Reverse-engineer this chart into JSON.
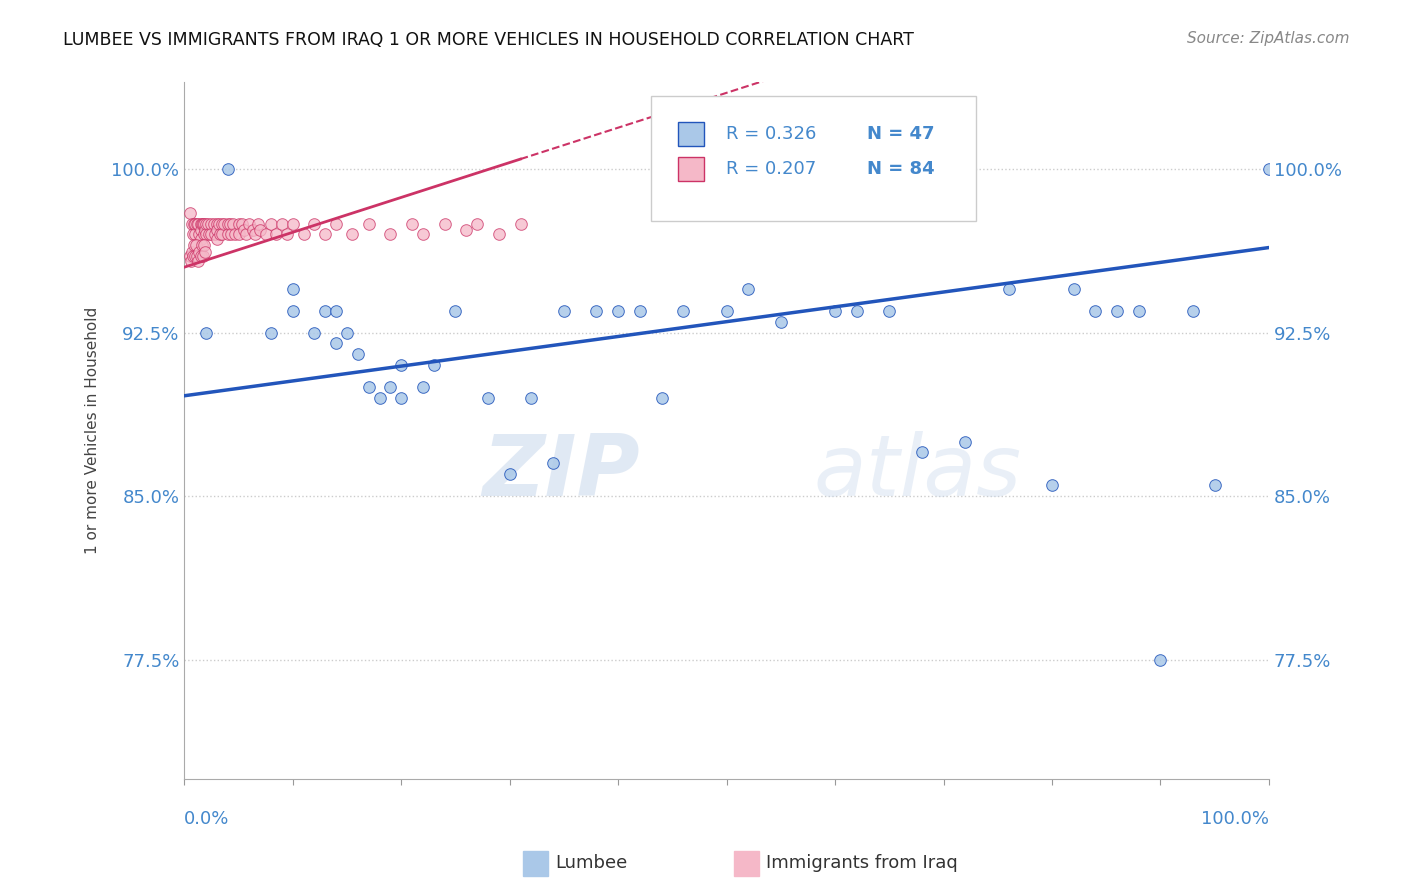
{
  "title": "LUMBEE VS IMMIGRANTS FROM IRAQ 1 OR MORE VEHICLES IN HOUSEHOLD CORRELATION CHART",
  "source": "Source: ZipAtlas.com",
  "ylabel": "1 or more Vehicles in Household",
  "ytick_labels": [
    "77.5%",
    "85.0%",
    "92.5%",
    "100.0%"
  ],
  "ytick_values": [
    0.775,
    0.85,
    0.925,
    1.0
  ],
  "xlim": [
    0.0,
    1.0
  ],
  "ylim": [
    0.72,
    1.04
  ],
  "legend_blue_R": "R = 0.326",
  "legend_blue_N": "N = 47",
  "legend_pink_R": "R = 0.207",
  "legend_pink_N": "N = 84",
  "legend_blue_label": "Lumbee",
  "legend_pink_label": "Immigrants from Iraq",
  "watermark": "ZIPatlas",
  "blue_scatter_x": [
    0.02,
    0.04,
    0.08,
    0.1,
    0.1,
    0.12,
    0.13,
    0.14,
    0.14,
    0.15,
    0.16,
    0.17,
    0.18,
    0.19,
    0.2,
    0.2,
    0.22,
    0.23,
    0.25,
    0.28,
    0.3,
    0.32,
    0.34,
    0.35,
    0.38,
    0.4,
    0.42,
    0.44,
    0.46,
    0.5,
    0.52,
    0.55,
    0.6,
    0.62,
    0.65,
    0.68,
    0.72,
    0.76,
    0.8,
    0.82,
    0.84,
    0.86,
    0.88,
    0.9,
    0.93,
    0.95,
    1.0
  ],
  "blue_scatter_y": [
    0.925,
    1.0,
    0.925,
    0.945,
    0.935,
    0.925,
    0.935,
    0.935,
    0.92,
    0.925,
    0.915,
    0.9,
    0.895,
    0.9,
    0.895,
    0.91,
    0.9,
    0.91,
    0.935,
    0.895,
    0.86,
    0.895,
    0.865,
    0.935,
    0.935,
    0.935,
    0.935,
    0.895,
    0.935,
    0.935,
    0.945,
    0.93,
    0.935,
    0.935,
    0.935,
    0.87,
    0.875,
    0.945,
    0.855,
    0.945,
    0.935,
    0.935,
    0.935,
    0.775,
    0.935,
    0.855,
    1.0
  ],
  "pink_scatter_x": [
    0.005,
    0.007,
    0.008,
    0.009,
    0.01,
    0.01,
    0.012,
    0.013,
    0.014,
    0.015,
    0.015,
    0.015,
    0.016,
    0.017,
    0.018,
    0.018,
    0.019,
    0.02,
    0.02,
    0.022,
    0.023,
    0.025,
    0.025,
    0.027,
    0.028,
    0.03,
    0.03,
    0.03,
    0.032,
    0.033,
    0.035,
    0.035,
    0.037,
    0.04,
    0.04,
    0.042,
    0.043,
    0.045,
    0.047,
    0.05,
    0.05,
    0.053,
    0.055,
    0.057,
    0.06,
    0.063,
    0.065,
    0.068,
    0.07,
    0.075,
    0.08,
    0.085,
    0.09,
    0.095,
    0.1,
    0.11,
    0.12,
    0.13,
    0.14,
    0.155,
    0.17,
    0.19,
    0.21,
    0.22,
    0.24,
    0.26,
    0.27,
    0.29,
    0.31,
    0.005,
    0.006,
    0.007,
    0.008,
    0.009,
    0.01,
    0.011,
    0.012,
    0.013,
    0.014,
    0.015,
    0.016,
    0.017,
    0.018,
    0.019
  ],
  "pink_scatter_y": [
    0.98,
    0.975,
    0.97,
    0.975,
    0.975,
    0.97,
    0.975,
    0.975,
    0.97,
    0.975,
    0.972,
    0.968,
    0.975,
    0.975,
    0.97,
    0.975,
    0.972,
    0.975,
    0.97,
    0.975,
    0.97,
    0.975,
    0.97,
    0.975,
    0.97,
    0.975,
    0.972,
    0.968,
    0.975,
    0.97,
    0.975,
    0.97,
    0.975,
    0.975,
    0.97,
    0.975,
    0.97,
    0.975,
    0.97,
    0.975,
    0.97,
    0.975,
    0.972,
    0.97,
    0.975,
    0.972,
    0.97,
    0.975,
    0.972,
    0.97,
    0.975,
    0.97,
    0.975,
    0.97,
    0.975,
    0.97,
    0.975,
    0.97,
    0.975,
    0.97,
    0.975,
    0.97,
    0.975,
    0.97,
    0.975,
    0.972,
    0.975,
    0.97,
    0.975,
    0.96,
    0.958,
    0.962,
    0.96,
    0.965,
    0.96,
    0.965,
    0.96,
    0.958,
    0.962,
    0.96,
    0.965,
    0.96,
    0.965,
    0.962
  ],
  "blue_color": "#aac8e8",
  "blue_line_color": "#2255bb",
  "pink_color": "#f5b8c8",
  "pink_line_color": "#cc3366",
  "dot_size": 70,
  "background_color": "#ffffff",
  "grid_color": "#cccccc",
  "axis_label_color": "#4488cc",
  "title_color": "#111111"
}
